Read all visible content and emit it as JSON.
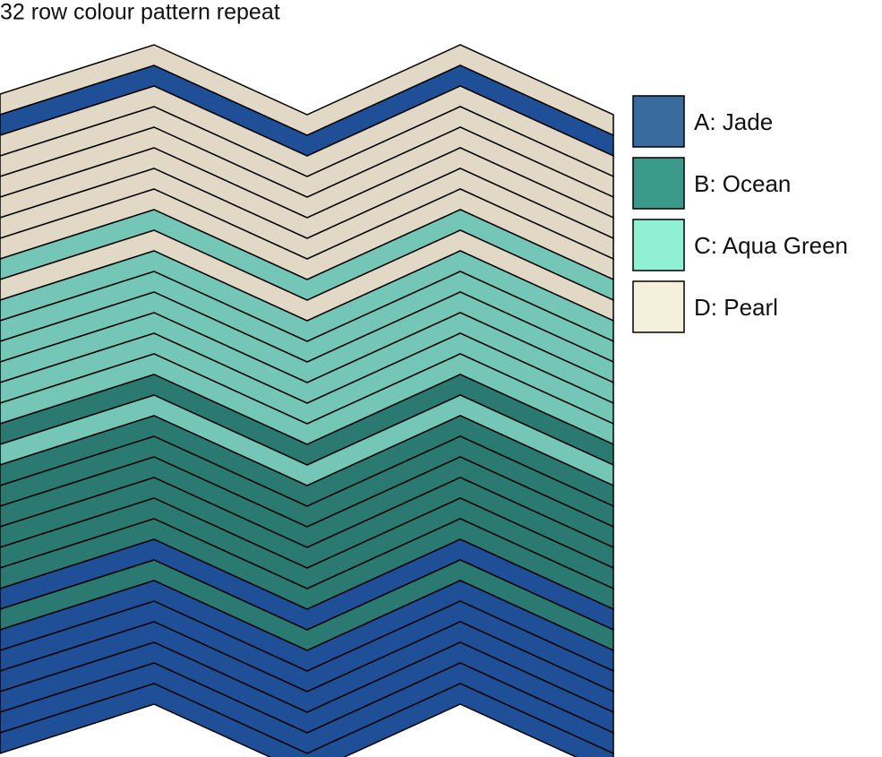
{
  "title": "32 row colour pattern repeat",
  "legend": [
    {
      "label": "A: Jade",
      "color": "#3a6b9e"
    },
    {
      "label": "B: Ocean",
      "color": "#3a9a8a"
    },
    {
      "label": "C: Aqua Green",
      "color": "#8ff0d2"
    },
    {
      "label": "D: Pearl",
      "color": "#f5f0dc"
    }
  ],
  "rows": [
    "#e2d8c6",
    "#1f4f96",
    "#e2d8c6",
    "#e2d8c6",
    "#e2d8c6",
    "#e2d8c6",
    "#e2d8c6",
    "#e2d8c6",
    "#74c6b6",
    "#e2d8c6",
    "#74c6b6",
    "#74c6b6",
    "#74c6b6",
    "#74c6b6",
    "#74c6b6",
    "#74c6b6",
    "#2b7a72",
    "#74c6b6",
    "#2b7a72",
    "#2b7a72",
    "#2b7a72",
    "#2b7a72",
    "#2b7a72",
    "#2b7a72",
    "#1f4f96",
    "#2b7a72",
    "#1f4f96",
    "#1f4f96",
    "#1f4f96",
    "#1f4f96",
    "#1f4f96",
    "#1f4f96"
  ]
}
